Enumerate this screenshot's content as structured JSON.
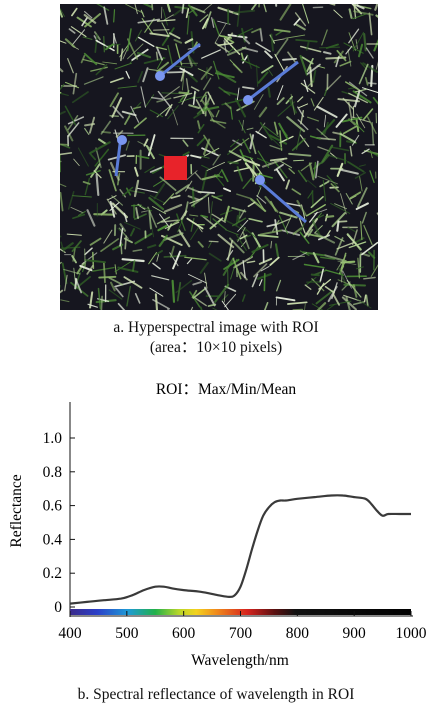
{
  "figure_a": {
    "caption_line1": "a. Hyperspectral image with ROI",
    "caption_line2": "(area：10×10 pixels)"
  },
  "figure_b": {
    "caption": "b. Spectral reflectance of wavelength in ROI"
  },
  "colors": {
    "roi_marker": "#e8232a",
    "curve": "#3a3a3a",
    "vegetation_background": "#16161f",
    "grass_light": "#cfe1b0",
    "grass_green": "#4a8a34",
    "sensor_blue": "#5a7cd8"
  },
  "chart_data": {
    "type": "line",
    "title": "ROI：Max/Min/Mean",
    "xlabel": "Wavelength/nm",
    "ylabel": "Reflectance",
    "xlim": [
      400,
      1000
    ],
    "ylim": [
      0,
      1.0
    ],
    "xticks": [
      "400",
      "500",
      "600",
      "700",
      "800",
      "900",
      "1000"
    ],
    "yticks": [
      "0",
      "0.2",
      "0.4",
      "0.6",
      "0.8",
      "1.0"
    ],
    "wavelength_colorbar": true,
    "series": [
      {
        "x": [
          400,
          430,
          460,
          490,
          510,
          530,
          550,
          565,
          580,
          600,
          630,
          660,
          680,
          690,
          700,
          710,
          720,
          730,
          740,
          750,
          760,
          770,
          780,
          800,
          830,
          860,
          880,
          900,
          920,
          930,
          940,
          950,
          960,
          980,
          1000
        ],
        "y": [
          0.02,
          0.03,
          0.04,
          0.05,
          0.07,
          0.1,
          0.12,
          0.12,
          0.11,
          0.1,
          0.09,
          0.07,
          0.06,
          0.07,
          0.12,
          0.22,
          0.34,
          0.45,
          0.54,
          0.59,
          0.62,
          0.63,
          0.63,
          0.64,
          0.65,
          0.66,
          0.66,
          0.65,
          0.64,
          0.61,
          0.57,
          0.54,
          0.55,
          0.55,
          0.55
        ]
      }
    ]
  }
}
